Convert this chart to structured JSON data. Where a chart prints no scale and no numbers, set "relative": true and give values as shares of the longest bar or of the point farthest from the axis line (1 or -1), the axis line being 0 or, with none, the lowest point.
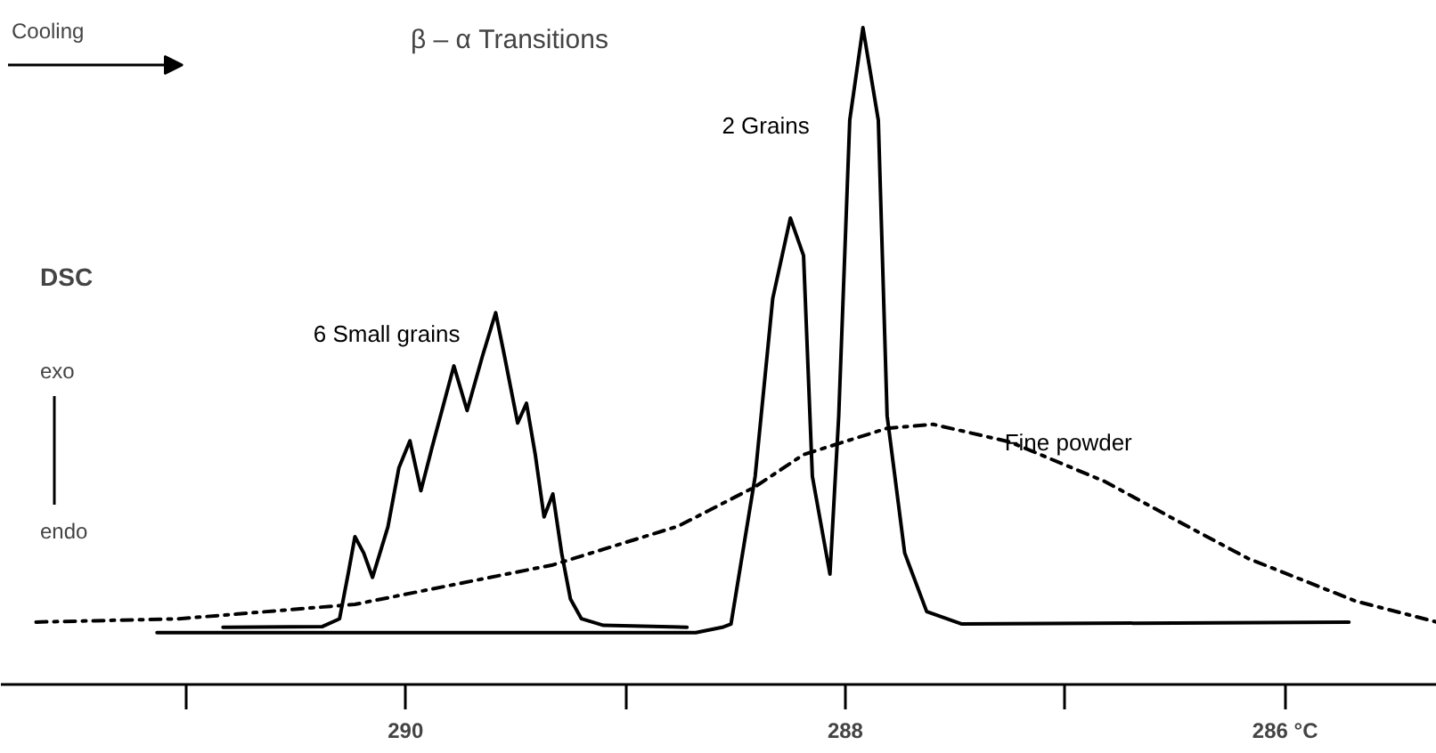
{
  "chart_data": {
    "type": "line",
    "relative": true,
    "title": "β – α Transitions",
    "ylabel": "DSC",
    "annotations": [
      "Cooling",
      "exo",
      "endo"
    ],
    "xlim": [
      291.84,
      285.31
    ],
    "xticks": [
      {
        "value": 291,
        "label": null
      },
      290,
      {
        "value": 289,
        "label": null
      },
      288,
      {
        "value": 287,
        "label": null
      },
      {
        "value": 286,
        "label": "286 °C"
      }
    ],
    "series": [
      {
        "name": "6 Small grains",
        "color": "#000000",
        "line_style": "solid",
        "x": [
          290.83,
          290.38,
          290.3,
          290.26,
          290.23,
          290.19,
          290.15,
          290.08,
          290.03,
          289.98,
          289.93,
          289.88,
          289.78,
          289.72,
          289.65,
          289.59,
          289.55,
          289.49,
          289.45,
          289.41,
          289.37,
          289.33,
          289.29,
          289.25,
          289.2,
          289.1,
          288.72
        ],
        "values": [
          0.087,
          0.088,
          0.1,
          0.17,
          0.225,
          0.2,
          0.163,
          0.24,
          0.33,
          0.371,
          0.295,
          0.36,
          0.485,
          0.417,
          0.5,
          0.566,
          0.5,
          0.398,
          0.428,
          0.35,
          0.255,
          0.29,
          0.2,
          0.13,
          0.1,
          0.09,
          0.087
        ]
      },
      {
        "name": "2 Grains",
        "color": "#000000",
        "line_style": "solid",
        "x": [
          291.13,
          288.68,
          288.56,
          288.52,
          288.41,
          288.33,
          288.25,
          288.19,
          288.15,
          288.07,
          288.03,
          287.98,
          287.92,
          287.85,
          287.81,
          287.73,
          287.63,
          287.47,
          285.71
        ],
        "values": [
          0.079,
          0.079,
          0.087,
          0.092,
          0.317,
          0.588,
          0.71,
          0.653,
          0.317,
          0.168,
          0.409,
          0.859,
          1,
          0.859,
          0.409,
          0.2,
          0.111,
          0.092,
          0.095
        ]
      },
      {
        "name": "Fine powder",
        "color": "#000000",
        "line_style": "dashdot",
        "x": [
          291.68,
          291.03,
          290.23,
          289.33,
          288.76,
          288.41,
          288.19,
          287.81,
          287.6,
          287.25,
          286.82,
          286.49,
          286.17,
          285.68,
          285.31
        ],
        "values": [
          0.095,
          0.1,
          0.122,
          0.182,
          0.241,
          0.301,
          0.35,
          0.39,
          0.396,
          0.369,
          0.309,
          0.249,
          0.192,
          0.127,
          0.095
        ]
      }
    ]
  }
}
